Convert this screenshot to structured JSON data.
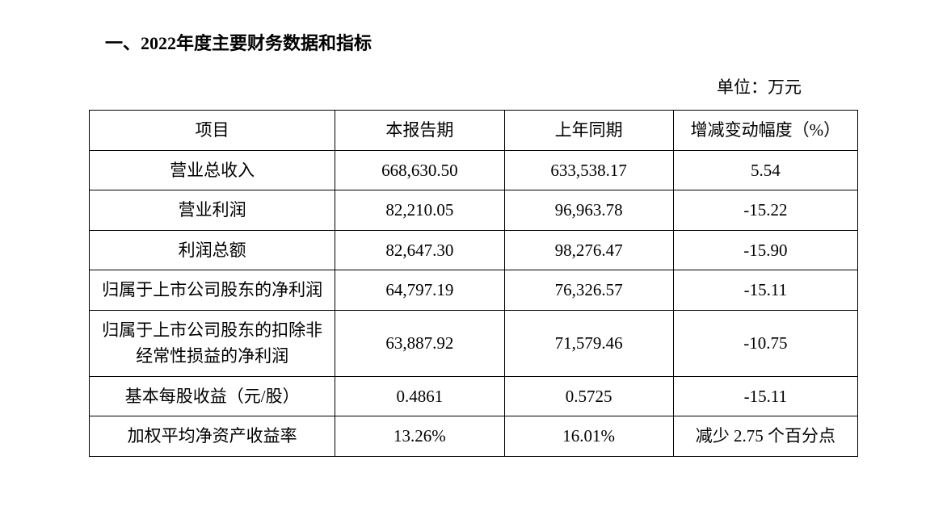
{
  "heading": "一、2022年度主要财务数据和指标",
  "unit_label": "单位：万元",
  "table": {
    "type": "table",
    "border_color": "#000000",
    "background_color": "#ffffff",
    "font_size_pt": 16,
    "columns": [
      {
        "key": "item",
        "label": "项目",
        "align": "center"
      },
      {
        "key": "current",
        "label": "本报告期",
        "align": "center"
      },
      {
        "key": "prior",
        "label": "上年同期",
        "align": "center"
      },
      {
        "key": "change",
        "label": "增减变动幅度（%）",
        "align": "center"
      }
    ],
    "rows": [
      {
        "item": "营业总收入",
        "current": "668,630.50",
        "prior": "633,538.17",
        "change": "5.54"
      },
      {
        "item": "营业利润",
        "current": "82,210.05",
        "prior": "96,963.78",
        "change": "-15.22"
      },
      {
        "item": "利润总额",
        "current": "82,647.30",
        "prior": "98,276.47",
        "change": "-15.90"
      },
      {
        "item": "归属于上市公司股东的净利润",
        "current": "64,797.19",
        "prior": "76,326.57",
        "change": "-15.11"
      },
      {
        "item": "归属于上市公司股东的扣除非经常性损益的净利润",
        "current": "63,887.92",
        "prior": "71,579.46",
        "change": "-10.75"
      },
      {
        "item": "基本每股收益（元/股）",
        "current": "0.4861",
        "prior": "0.5725",
        "change": "-15.11"
      },
      {
        "item": "加权平均净资产收益率",
        "current": "13.26%",
        "prior": "16.01%",
        "change": "减少 2.75 个百分点"
      }
    ]
  }
}
